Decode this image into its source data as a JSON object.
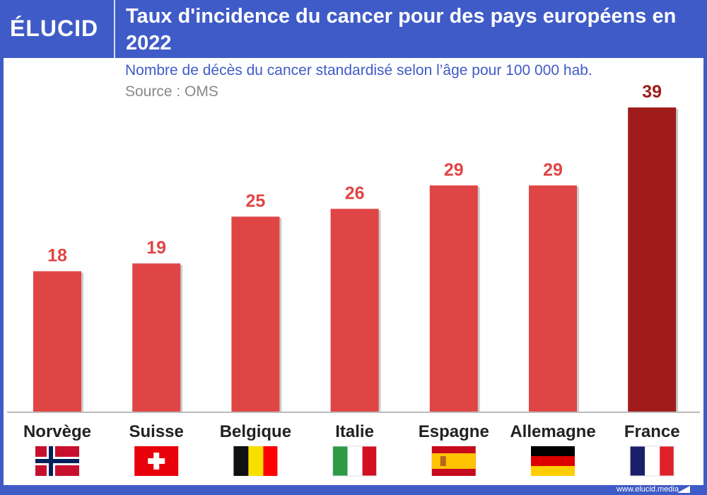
{
  "brand": "ÉLUCID",
  "header": {
    "title": "Taux d'incidence du cancer pour des pays européens en 2022"
  },
  "chart_data": {
    "type": "bar",
    "title": "Taux d'incidence du cancer pour des pays européens en 2022",
    "subtitle": "Nombre de décès du cancer standardisé selon l’âge pour 100 000 hab.",
    "source": "Source : OMS",
    "categories": [
      "Norvège",
      "Suisse",
      "Belgique",
      "Italie",
      "Espagne",
      "Allemagne",
      "France"
    ],
    "values": [
      18,
      19,
      25,
      26,
      29,
      29,
      39
    ],
    "flags": [
      "norway-flag",
      "switzerland-flag",
      "belgium-flag",
      "italy-flag",
      "spain-flag",
      "germany-flag",
      "france-flag"
    ],
    "ylim": [
      0,
      39
    ],
    "grid": false,
    "colors": {
      "bar": "#e04545",
      "highlight": "#a01c1c",
      "label": "#e04545",
      "highlight_label": "#a01c1c"
    }
  },
  "footer": {
    "url": "www.elucid.media"
  }
}
